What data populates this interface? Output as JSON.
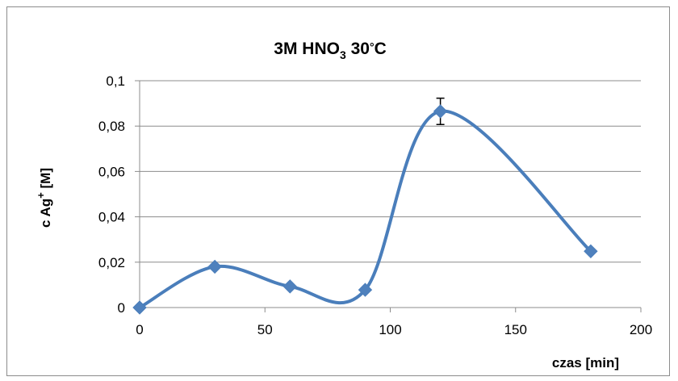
{
  "chart_data": {
    "type": "line",
    "title": "3M HNO",
    "title_subscript": "3",
    "title_suffix": " 30",
    "title_degree": "°",
    "title_unit": "C",
    "xlabel": "czas [min]",
    "ylabel_prefix": "c Ag",
    "ylabel_superscript": "+",
    "ylabel_suffix": " [M]",
    "xlim": [
      0,
      200
    ],
    "ylim": [
      0,
      0.1
    ],
    "x_ticks": [
      0,
      50,
      100,
      150,
      200
    ],
    "x_tick_labels": [
      "0",
      "50",
      "100",
      "150",
      "200"
    ],
    "y_ticks": [
      0,
      0.02,
      0.04,
      0.06,
      0.08,
      0.1
    ],
    "y_tick_labels": [
      "0",
      "0,02",
      "0,04",
      "0,06",
      "0,08",
      "0,1"
    ],
    "grid": "horizontal",
    "legend": "none",
    "smooth": true,
    "line_color": "#4a7ebb",
    "marker_color": "#4f81bd",
    "series": [
      {
        "x": [
          0,
          30,
          60,
          90,
          120,
          180
        ],
        "y": [
          0,
          0.018,
          0.0093,
          0.0078,
          0.0865,
          0.0248
        ],
        "error": [
          0,
          0,
          0,
          0,
          0.0058,
          0
        ]
      }
    ]
  }
}
